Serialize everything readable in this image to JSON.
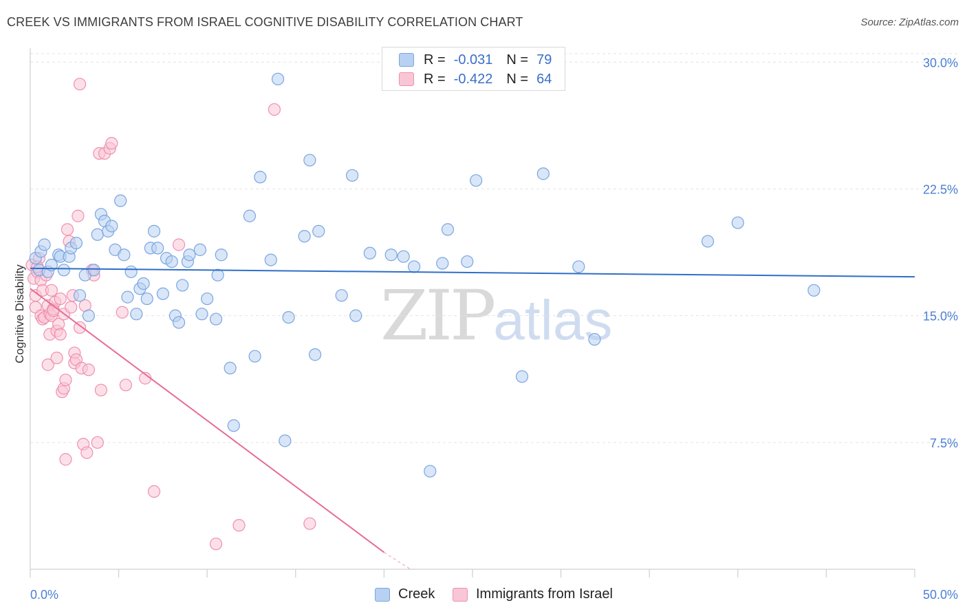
{
  "header": {
    "title": "CREEK VS IMMIGRANTS FROM ISRAEL COGNITIVE DISABILITY CORRELATION CHART",
    "source": "Source: ZipAtlas.com"
  },
  "watermark": {
    "zip": "ZIP",
    "atlas": "atlas"
  },
  "legend_top": {
    "rows": [
      {
        "r_label": "R =",
        "r_value": "-0.031",
        "n_label": "N =",
        "n_value": "79"
      },
      {
        "r_label": "R =",
        "r_value": "-0.422",
        "n_label": "N =",
        "n_value": "64"
      }
    ]
  },
  "legend_bottom": {
    "series1": "Creek",
    "series2": "Immigrants from Israel"
  },
  "colors": {
    "creek_fill": "#b8d1f2",
    "creek_stroke": "#7aa5e0",
    "creek_line": "#2f6ec8",
    "israel_fill": "#f9c6d6",
    "israel_stroke": "#ef8fb0",
    "israel_line": "#e86b97",
    "tick_text": "#4a7fd4",
    "grid": "#e3e3e3"
  },
  "chart_data": {
    "type": "scatter",
    "title": "CREEK VS IMMIGRANTS FROM ISRAEL COGNITIVE DISABILITY CORRELATION CHART",
    "xlabel": "",
    "ylabel": "Cognitive Disability",
    "xlim": [
      0,
      50
    ],
    "ylim": [
      0,
      30.5
    ],
    "x_tick_labels": [
      "0.0%",
      "50.0%"
    ],
    "y_ticks": [
      7.5,
      15.0,
      22.5,
      30.0
    ],
    "y_tick_labels": [
      "7.5%",
      "15.0%",
      "22.5%",
      "30.0%"
    ],
    "legend_position": "top-center",
    "series": [
      {
        "name": "Creek",
        "R": -0.031,
        "N": 79,
        "trend": {
          "x": [
            0,
            50
          ],
          "y": [
            17.8,
            17.3
          ]
        },
        "points": [
          [
            0.3,
            18.4
          ],
          [
            0.5,
            17.7
          ],
          [
            0.6,
            18.8
          ],
          [
            0.8,
            19.2
          ],
          [
            1.0,
            17.6
          ],
          [
            1.2,
            18.0
          ],
          [
            1.6,
            18.6
          ],
          [
            1.7,
            18.5
          ],
          [
            1.9,
            17.7
          ],
          [
            2.2,
            18.5
          ],
          [
            2.3,
            19.0
          ],
          [
            2.6,
            19.3
          ],
          [
            2.8,
            16.2
          ],
          [
            3.1,
            17.4
          ],
          [
            3.3,
            15.0
          ],
          [
            3.6,
            17.7
          ],
          [
            3.8,
            19.8
          ],
          [
            4.0,
            21.0
          ],
          [
            4.2,
            20.6
          ],
          [
            4.4,
            20.0
          ],
          [
            4.6,
            20.3
          ],
          [
            4.8,
            18.9
          ],
          [
            5.1,
            21.8
          ],
          [
            5.3,
            18.6
          ],
          [
            5.5,
            16.1
          ],
          [
            5.7,
            17.6
          ],
          [
            6.0,
            15.1
          ],
          [
            6.2,
            16.6
          ],
          [
            6.4,
            16.9
          ],
          [
            6.6,
            16.0
          ],
          [
            6.8,
            19.0
          ],
          [
            7.0,
            20.0
          ],
          [
            7.2,
            19.0
          ],
          [
            7.5,
            16.3
          ],
          [
            7.7,
            18.4
          ],
          [
            8.0,
            18.2
          ],
          [
            8.2,
            15.0
          ],
          [
            8.4,
            14.6
          ],
          [
            8.6,
            16.8
          ],
          [
            8.9,
            18.2
          ],
          [
            9.0,
            18.6
          ],
          [
            9.6,
            18.9
          ],
          [
            9.7,
            15.1
          ],
          [
            10.0,
            16.0
          ],
          [
            10.5,
            14.8
          ],
          [
            10.6,
            17.4
          ],
          [
            10.8,
            18.6
          ],
          [
            11.3,
            11.9
          ],
          [
            11.5,
            8.5
          ],
          [
            12.4,
            20.9
          ],
          [
            12.7,
            12.6
          ],
          [
            13.0,
            23.2
          ],
          [
            13.6,
            18.3
          ],
          [
            14.0,
            29.0
          ],
          [
            14.4,
            7.6
          ],
          [
            14.6,
            14.9
          ],
          [
            15.5,
            19.7
          ],
          [
            15.8,
            24.2
          ],
          [
            16.1,
            12.7
          ],
          [
            16.3,
            20.0
          ],
          [
            17.6,
            16.2
          ],
          [
            18.2,
            23.3
          ],
          [
            18.4,
            15.0
          ],
          [
            19.2,
            18.7
          ],
          [
            20.4,
            18.6
          ],
          [
            21.1,
            18.5
          ],
          [
            21.7,
            17.9
          ],
          [
            22.6,
            5.8
          ],
          [
            23.3,
            18.1
          ],
          [
            23.6,
            20.1
          ],
          [
            24.7,
            18.2
          ],
          [
            25.2,
            23.0
          ],
          [
            27.8,
            11.4
          ],
          [
            29.0,
            23.4
          ],
          [
            31.0,
            17.9
          ],
          [
            31.9,
            13.6
          ],
          [
            38.3,
            19.4
          ],
          [
            40.0,
            20.5
          ],
          [
            44.3,
            16.5
          ]
        ]
      },
      {
        "name": "Immigrants from Israel",
        "R": -0.422,
        "N": 64,
        "trend": {
          "x": [
            0,
            20.0
          ],
          "y": [
            16.6,
            1.0
          ]
        },
        "trend_dashed": {
          "x": [
            20.0,
            21.5
          ],
          "y": [
            1.0,
            0.0
          ]
        },
        "points": [
          [
            0.1,
            18.0
          ],
          [
            0.2,
            17.2
          ],
          [
            0.3,
            16.2
          ],
          [
            0.3,
            15.5
          ],
          [
            0.4,
            17.6
          ],
          [
            0.5,
            18.4
          ],
          [
            0.6,
            17.1
          ],
          [
            0.6,
            15.0
          ],
          [
            0.7,
            16.5
          ],
          [
            0.7,
            14.8
          ],
          [
            0.8,
            14.9
          ],
          [
            0.9,
            17.4
          ],
          [
            1.0,
            15.6
          ],
          [
            1.0,
            12.1
          ],
          [
            1.1,
            15.1
          ],
          [
            1.1,
            13.9
          ],
          [
            1.2,
            16.5
          ],
          [
            1.2,
            15.0
          ],
          [
            1.3,
            15.4
          ],
          [
            1.4,
            15.8
          ],
          [
            1.5,
            14.1
          ],
          [
            1.5,
            12.5
          ],
          [
            1.6,
            14.5
          ],
          [
            1.7,
            13.9
          ],
          [
            1.7,
            16.0
          ],
          [
            1.8,
            10.5
          ],
          [
            1.9,
            10.7
          ],
          [
            1.9,
            15.1
          ],
          [
            2.0,
            11.2
          ],
          [
            2.0,
            6.5
          ],
          [
            2.1,
            20.1
          ],
          [
            2.2,
            19.4
          ],
          [
            2.3,
            15.5
          ],
          [
            2.4,
            16.2
          ],
          [
            2.5,
            12.8
          ],
          [
            2.5,
            12.2
          ],
          [
            2.6,
            12.4
          ],
          [
            2.7,
            20.9
          ],
          [
            2.8,
            14.3
          ],
          [
            2.8,
            28.7
          ],
          [
            2.9,
            11.9
          ],
          [
            3.0,
            7.4
          ],
          [
            3.1,
            15.6
          ],
          [
            3.2,
            6.9
          ],
          [
            3.3,
            11.8
          ],
          [
            3.5,
            17.7
          ],
          [
            3.6,
            17.4
          ],
          [
            3.8,
            7.5
          ],
          [
            3.9,
            24.6
          ],
          [
            4.0,
            10.6
          ],
          [
            4.2,
            24.6
          ],
          [
            4.5,
            24.9
          ],
          [
            4.6,
            25.2
          ],
          [
            5.2,
            15.2
          ],
          [
            5.4,
            10.9
          ],
          [
            6.5,
            11.3
          ],
          [
            7.0,
            4.6
          ],
          [
            8.4,
            19.2
          ],
          [
            10.5,
            1.5
          ],
          [
            11.8,
            2.6
          ],
          [
            13.8,
            27.2
          ],
          [
            15.8,
            2.7
          ],
          [
            0.4,
            17.9
          ],
          [
            1.3,
            15.3
          ]
        ]
      }
    ]
  }
}
